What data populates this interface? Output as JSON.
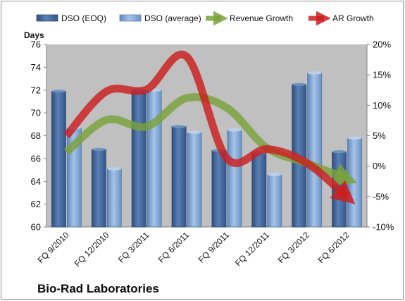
{
  "company_label": "Bio-Rad Laboratories",
  "chart_data": {
    "type": "bar",
    "categories": [
      "FQ 9/2010",
      "FQ 12/2010",
      "FQ 3/2011",
      "FQ 6/2011",
      "FQ 9/2011",
      "FQ 12/2011",
      "FQ 3/2012",
      "FQ 6/2012"
    ],
    "series": [
      {
        "name": "DSO (EOQ)",
        "type": "bar",
        "axis": "left",
        "values": [
          71.9,
          66.8,
          72.0,
          68.8,
          66.7,
          66.5,
          72.5,
          66.6
        ]
      },
      {
        "name": "DSO (average)",
        "type": "bar",
        "axis": "left",
        "values": [
          68.7,
          65.1,
          72.0,
          68.3,
          68.5,
          64.6,
          73.5,
          67.8
        ]
      },
      {
        "name": "Revenue Growth",
        "type": "line",
        "axis": "right",
        "values": [
          2.3,
          7.6,
          6.5,
          11.2,
          9.6,
          3.0,
          0.5,
          -2.1
        ]
      },
      {
        "name": "AR Growth",
        "type": "line",
        "axis": "right",
        "values": [
          5.0,
          12.3,
          12.6,
          18.0,
          1.3,
          2.8,
          0.5,
          -5.1
        ]
      }
    ],
    "ylabel": "Days",
    "ylim": [
      60,
      76
    ],
    "y_ticks": [
      "60",
      "62",
      "64",
      "66",
      "68",
      "70",
      "72",
      "74",
      "76"
    ],
    "y2lim": [
      -10,
      20
    ],
    "y2_ticks": [
      "-10%",
      "-5%",
      "0%",
      "5%",
      "10%",
      "15%",
      "20%"
    ],
    "legend_position": "top",
    "grid": false,
    "colors": {
      "plot_background": "#c0c0c0",
      "bar_eoq": "#4a6e9f",
      "bar_avg": "#7fa6d6",
      "revenue_line": "#7aa23a",
      "ar_line": "#cc1f1f"
    }
  }
}
